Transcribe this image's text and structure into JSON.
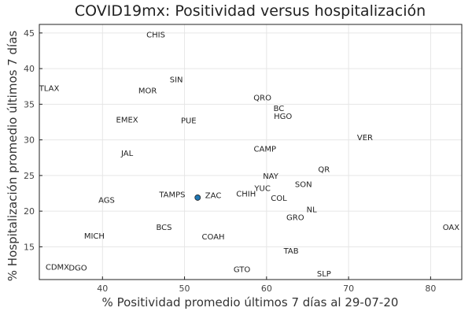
{
  "chart_data": {
    "type": "scatter",
    "title": "COVID19mx: Positividad versus hospitalización",
    "xlabel": "% Positividad promedio últimos 7 días al 29-07-20",
    "ylabel": "% Hospitalización promedio últimos 7 días",
    "xlim": [
      32.3,
      83.8
    ],
    "ylim": [
      10.4,
      46.2
    ],
    "xticks": [
      40,
      50,
      60,
      70,
      80
    ],
    "yticks": [
      15,
      20,
      25,
      30,
      35,
      40,
      45
    ],
    "grid": true,
    "legend": "none",
    "marker_color": "#1f77b4",
    "points": [
      {
        "label": "CHIS",
        "x": 46.5,
        "y": 44.8
      },
      {
        "label": "TLAX",
        "x": 33.5,
        "y": 37.3
      },
      {
        "label": "SIN",
        "x": 49.0,
        "y": 38.5
      },
      {
        "label": "MOR",
        "x": 45.5,
        "y": 37.0
      },
      {
        "label": "QRO",
        "x": 59.5,
        "y": 36.0
      },
      {
        "label": "BC",
        "x": 61.5,
        "y": 34.5
      },
      {
        "label": "HGO",
        "x": 62.0,
        "y": 33.4
      },
      {
        "label": "EMEX",
        "x": 43.0,
        "y": 32.9
      },
      {
        "label": "PUE",
        "x": 50.5,
        "y": 32.8
      },
      {
        "label": "VER",
        "x": 72.0,
        "y": 30.4
      },
      {
        "label": "CAMP",
        "x": 59.8,
        "y": 28.8
      },
      {
        "label": "JAL",
        "x": 43.0,
        "y": 28.2
      },
      {
        "label": "QR",
        "x": 67.0,
        "y": 25.9
      },
      {
        "label": "NAY",
        "x": 60.5,
        "y": 25.0
      },
      {
        "label": "SON",
        "x": 64.5,
        "y": 23.8
      },
      {
        "label": "YUC",
        "x": 59.5,
        "y": 23.3
      },
      {
        "label": "CHIH",
        "x": 57.5,
        "y": 22.5
      },
      {
        "label": "TAMPS",
        "x": 48.5,
        "y": 22.4
      },
      {
        "label": "ZAC",
        "x": 53.5,
        "y": 22.3
      },
      {
        "label": "COL",
        "x": 61.5,
        "y": 21.9
      },
      {
        "label": "AGS",
        "x": 40.5,
        "y": 21.6
      },
      {
        "label": "NL",
        "x": 65.5,
        "y": 20.3
      },
      {
        "label": "GRO",
        "x": 63.5,
        "y": 19.2
      },
      {
        "label": "OAX",
        "x": 82.5,
        "y": 17.8
      },
      {
        "label": "BCS",
        "x": 47.5,
        "y": 17.8
      },
      {
        "label": "MICH",
        "x": 39.0,
        "y": 16.6
      },
      {
        "label": "COAH",
        "x": 53.5,
        "y": 16.5
      },
      {
        "label": "TAB",
        "x": 63.0,
        "y": 14.5
      },
      {
        "label": "CDMX",
        "x": 34.5,
        "y": 12.2
      },
      {
        "label": "DGO",
        "x": 37.0,
        "y": 12.1
      },
      {
        "label": "GTO",
        "x": 57.0,
        "y": 11.9
      },
      {
        "label": "SLP",
        "x": 67.0,
        "y": 11.3
      }
    ],
    "highlight_point": {
      "x": 51.6,
      "y": 21.9
    }
  }
}
